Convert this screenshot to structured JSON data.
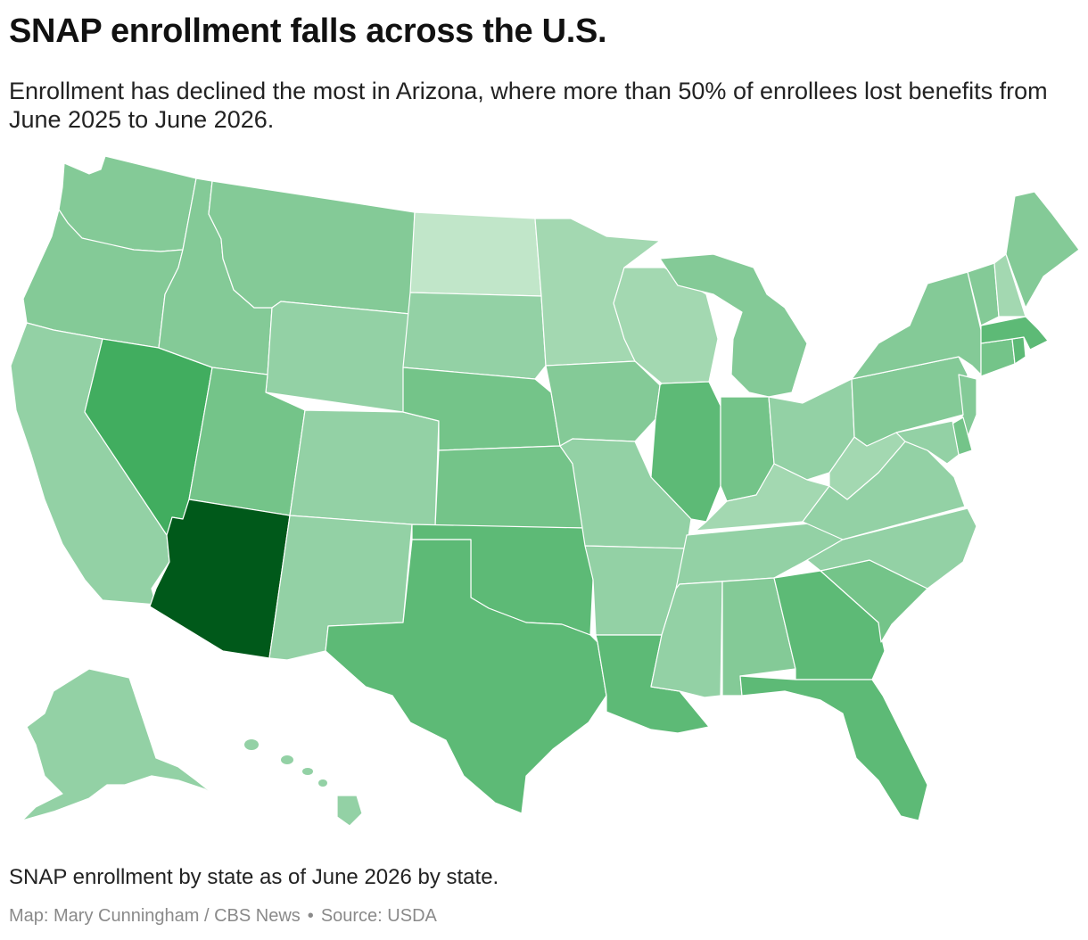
{
  "header": {
    "title": "SNAP enrollment falls across the U.S.",
    "subtitle": "Enrollment has declined the most in Arizona, where more than 50% of enrollees lost benefits from June 2025 to June 2026."
  },
  "caption": "SNAP enrollment by state as of June 2026 by state.",
  "credit": {
    "map": "Map: Mary Cunningham / CBS News",
    "separator": "•",
    "source": "Source: USDA"
  },
  "colors": {
    "darkest": "#00591a",
    "dark": "#41ad5f",
    "mid": "#5dba76",
    "midlight": "#74c489",
    "light": "#84ca97",
    "lighter": "#93d1a5",
    "lightest": "#a3d8b1",
    "palest": "#c1e6c9"
  },
  "map_data": {
    "highlight_state": "Arizona",
    "shading": {
      "WA": "light",
      "OR": "light",
      "CA": "lighter",
      "NV": "dark",
      "ID": "light",
      "MT": "light",
      "WY": "lighter",
      "UT": "midlight",
      "AZ": "darkest",
      "CO": "lighter",
      "NM": "lighter",
      "ND": "palest",
      "SD": "lighter",
      "NE": "midlight",
      "KS": "midlight",
      "OK": "mid",
      "TX": "mid",
      "MN": "lightest",
      "IA": "light",
      "MO": "lighter",
      "AR": "lighter",
      "LA": "mid",
      "WI": "lightest",
      "IL": "mid",
      "MI": "light",
      "IN": "midlight",
      "OH": "lighter",
      "KY": "lightest",
      "TN": "lighter",
      "MS": "lighter",
      "AL": "light",
      "GA": "mid",
      "FL": "mid",
      "SC": "midlight",
      "NC": "lighter",
      "VA": "lighter",
      "WV": "lightest",
      "PA": "light",
      "NY": "light",
      "VT": "light",
      "NH": "lightest",
      "ME": "light",
      "MA": "mid",
      "CT": "midlight",
      "RI": "mid",
      "NJ": "light",
      "DE": "midlight",
      "MD": "lighter",
      "AK": "lighter",
      "HI": "lighter"
    }
  }
}
